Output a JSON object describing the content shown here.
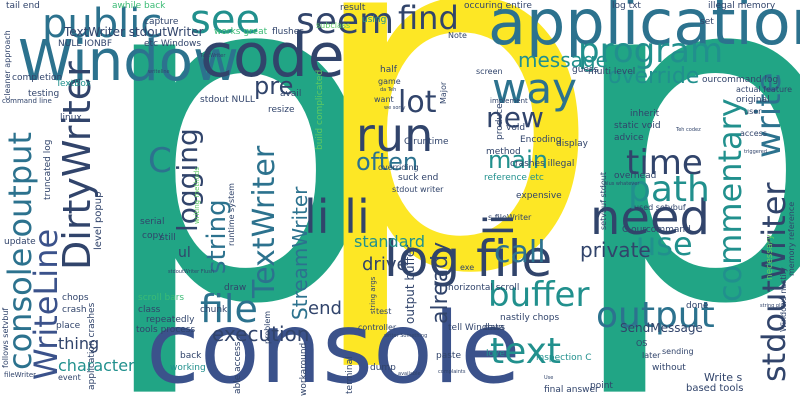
{
  "colors": {
    "background": "#ffffff",
    "yellow": "#fde725",
    "teal": "#21a585",
    "dark_blue": "#3b528b",
    "navy": "#31446b",
    "blue": "#2c728e",
    "mid": "#21908d",
    "light_green": "#5ec962",
    "green": "#3bbb75",
    "purple": "#472d7b",
    "deep_purple": "#440154"
  },
  "words": {
    "p_left": "p",
    "p_center": "p",
    "p_right": "p",
    "console_big": "console",
    "application": "application",
    "window": "Window",
    "code": "code",
    "public": "public",
    "see": "see",
    "seem": "seem",
    "find": "find",
    "program": "program",
    "way": "way",
    "run": "run",
    "log_file": "log file",
    "lot": "lot",
    "need": "need",
    "output": "output",
    "text": "text",
    "file": "file",
    "buffer": "buffer",
    "call": "call",
    "li_li": "li li",
    "li_vertical": "li",
    "time": "time",
    "path": "path",
    "use": "use",
    "main": "main",
    "often": "often",
    "new": "new",
    "pre": "pre",
    "c_letter": "C",
    "logging": "logging",
    "string": "string",
    "textwriter": "TextWriter",
    "streamwriter": "StreamWriter",
    "console_output": "console output",
    "writeline": "WriteLine",
    "dirtywriter": "DirtyWriter",
    "commentary": "commentary",
    "write": "write",
    "stdoutwriter": "stdoutWriter",
    "override": "override",
    "message": "message",
    "private": "private",
    "execution": "execution",
    "character": "character",
    "standard": "standard",
    "drive": "drive",
    "already": "already",
    "end": "end",
    "thing": "thing",
    "textwriter_stdout": "TextWriter stdoutWriter",
    "null_ionbf": "NULL IONBF",
    "etc_windows": "etc Windows",
    "tail_end": "tail end",
    "awhile_back": "awhile back",
    "capture": "capture",
    "works_great": "works great",
    "flushes": "flushes",
    "result": "result",
    "using": "using",
    "occuring_entire": "occuring entire",
    "log_txt": "log txt",
    "illegal_memory": "illegal memory",
    "set": "set",
    "note": "Note",
    "subclass": "subclass",
    "stdout_null": "stdout NULL",
    "textbox": "TextBox",
    "completion": "completion",
    "testing": "testing",
    "linux": "linux",
    "truncated_log": "truncated log",
    "level_popup": "level popup",
    "serial": "serial",
    "copy": "copy",
    "still": "still",
    "ul": "ul",
    "update": "update",
    "chops": "chops",
    "crash": "crash",
    "place": "place",
    "follows_setvbuf": "follows setvbuf",
    "application_crashes": "application crashes",
    "scroll_bars": "scroll bars",
    "chunk": "chunk",
    "class": "class",
    "repeatedly": "repeatedly",
    "tools_process": "tools process",
    "draw": "draw",
    "back": "back",
    "working": "working",
    "event": "event",
    "able_access": "able access",
    "workaround": "workaround",
    "terminal": "terminal",
    "dump": "dump",
    "paste": "paste",
    "love": "love",
    "inspection_c": "inspection C",
    "final_answer": "final answer",
    "based_tools": "based tools",
    "point": "point",
    "write_s": "Write s",
    "without": "without",
    "later": "later",
    "sending": "sending",
    "os": "OS",
    "done": "done",
    "sendmessage": "SendMessage",
    "tell_windows": "tell Windows",
    "nastily_chops": "nastily chops",
    "data": "data",
    "horizontal_scroll": "horizontal scroll",
    "output_buffer": "output buffer",
    "exe": "exe",
    "crashes_illegal": "crashes illegal",
    "reference_etc": "reference etc",
    "suck_end": "suck end",
    "stdout_writer": "stdout writer",
    "c_runtime": "C runtime",
    "overriding": "overriding",
    "method": "method",
    "void": "void",
    "produce": "produce",
    "encoding": "Encoding",
    "display": "display",
    "expensive": "expensive",
    "static_void": "static void",
    "advice": "advice",
    "inherit": "inherit",
    "overhead": "overhead",
    "c_ourcommand": "C ourcommand",
    "ourcommand_log": "ourcommand log",
    "multi_level": "multi level",
    "guess": "guess",
    "screen": "screen",
    "half": "half",
    "game": "game",
    "major": "Major",
    "want": "want",
    "avail": "avail",
    "resize": "resize",
    "build_complicated": "build complicated",
    "cleaner_approach": "cleaner approach",
    "original": "original",
    "user": "user",
    "access": "access",
    "necessary": "necessary",
    "windows_nastily": "Windows nastily",
    "memory_reference": "memory reference",
    "used_setvbuf": "used setvbuf",
    "setvbuf_stdout": "setvbuf stdout",
    "s_filewriter": "s fileWriter",
    "runtime_system": "runtime system",
    "writing_methods": "writing methods",
    "string_args": "string args",
    "problem": "problem",
    "controller": "controller",
    "test": "test",
    "actual_feature": "actual feature",
    "implement": "implement",
    "filewriter": "fileWriter",
    "command_line": "command line",
    "tiny_1": "TextWriter",
    "tiny_2": "writeline",
    "tiny_3": "stdoutWriter Flush",
    "tiny_4": "Teh codez",
    "tiny_5": "plus whatever",
    "tiny_6": "string plus",
    "tiny_7": "complaints",
    "tiny_8": "available",
    "tiny_9": "writer Something",
    "tiny_10": "we sorry",
    "tiny_11": "da Teh",
    "tiny_12": "triggered",
    "tiny_13": "Use"
  }
}
